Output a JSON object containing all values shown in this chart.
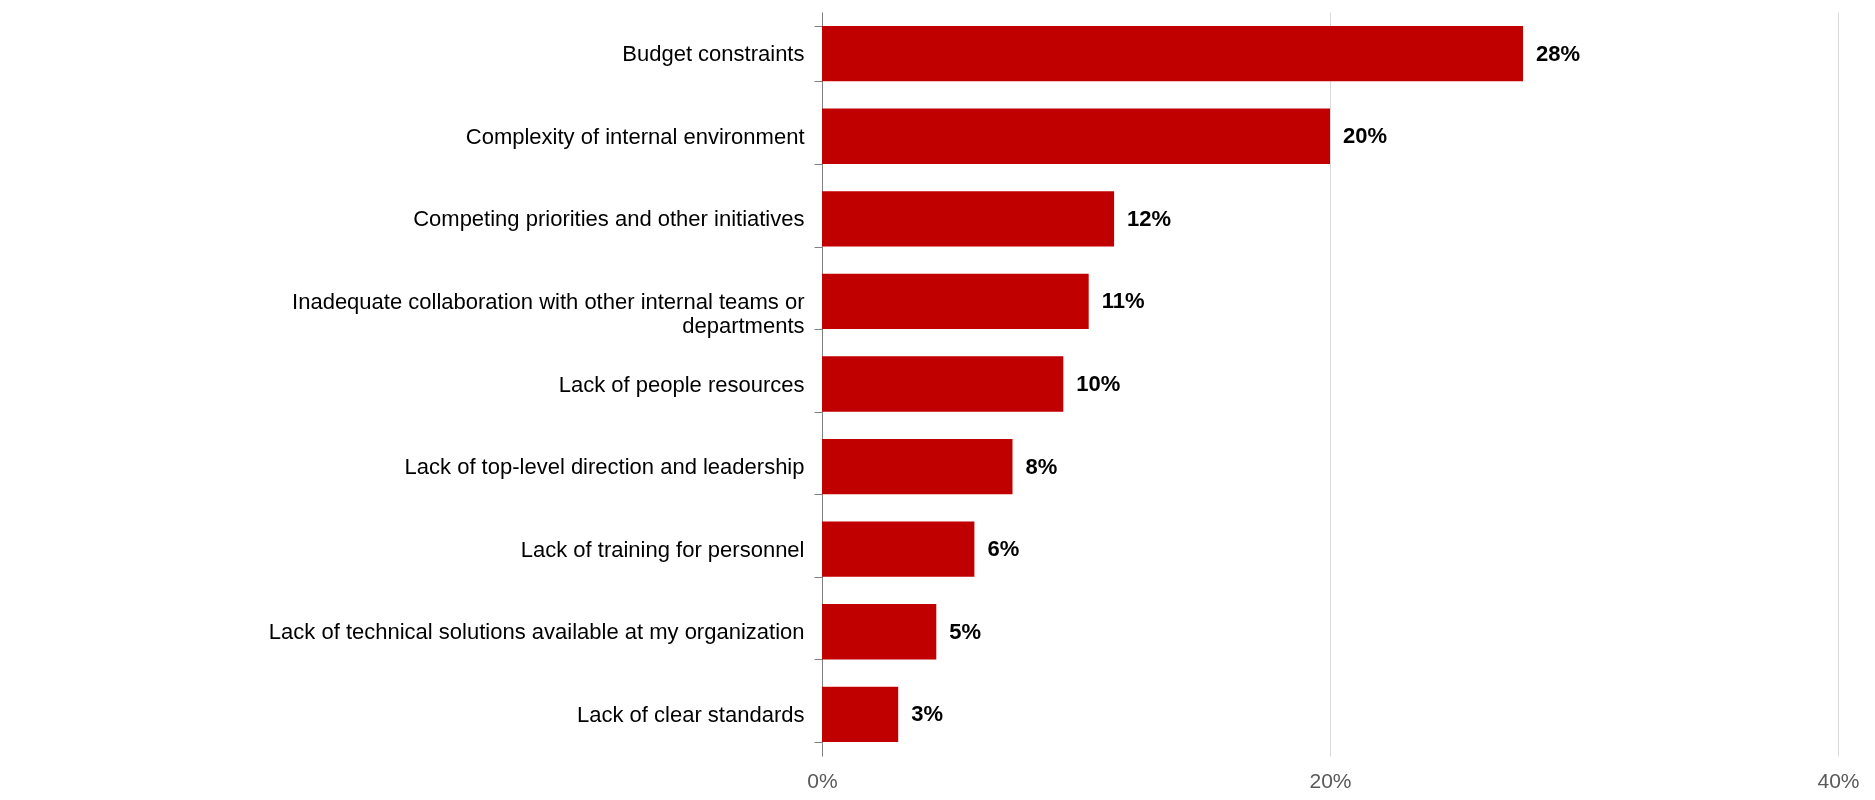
{
  "chart_data": {
    "type": "bar",
    "orientation": "horizontal",
    "categories": [
      "Budget constraints",
      "Complexity of internal environment",
      "Competing priorities and other initiatives",
      "Inadequate collaboration with other internal teams or departments",
      "Lack of people resources",
      "Lack of top-level direction and leadership",
      "Lack of training for personnel",
      "Lack of technical solutions available at my organization",
      "Lack of clear standards"
    ],
    "values": [
      27.6,
      20,
      11.5,
      10.5,
      9.5,
      7.5,
      6,
      4.5,
      3
    ],
    "value_labels": [
      "28%",
      "20%",
      "12%",
      "11%",
      "10%",
      "8%",
      "6%",
      "5%",
      "3%"
    ],
    "color": "#c00000",
    "xlim": [
      0,
      40
    ],
    "xticks": [
      {
        "value": 0,
        "label": "0%"
      },
      {
        "value": 20,
        "label": "20%"
      },
      {
        "value": 40,
        "label": "40%"
      }
    ],
    "grid": "x"
  }
}
